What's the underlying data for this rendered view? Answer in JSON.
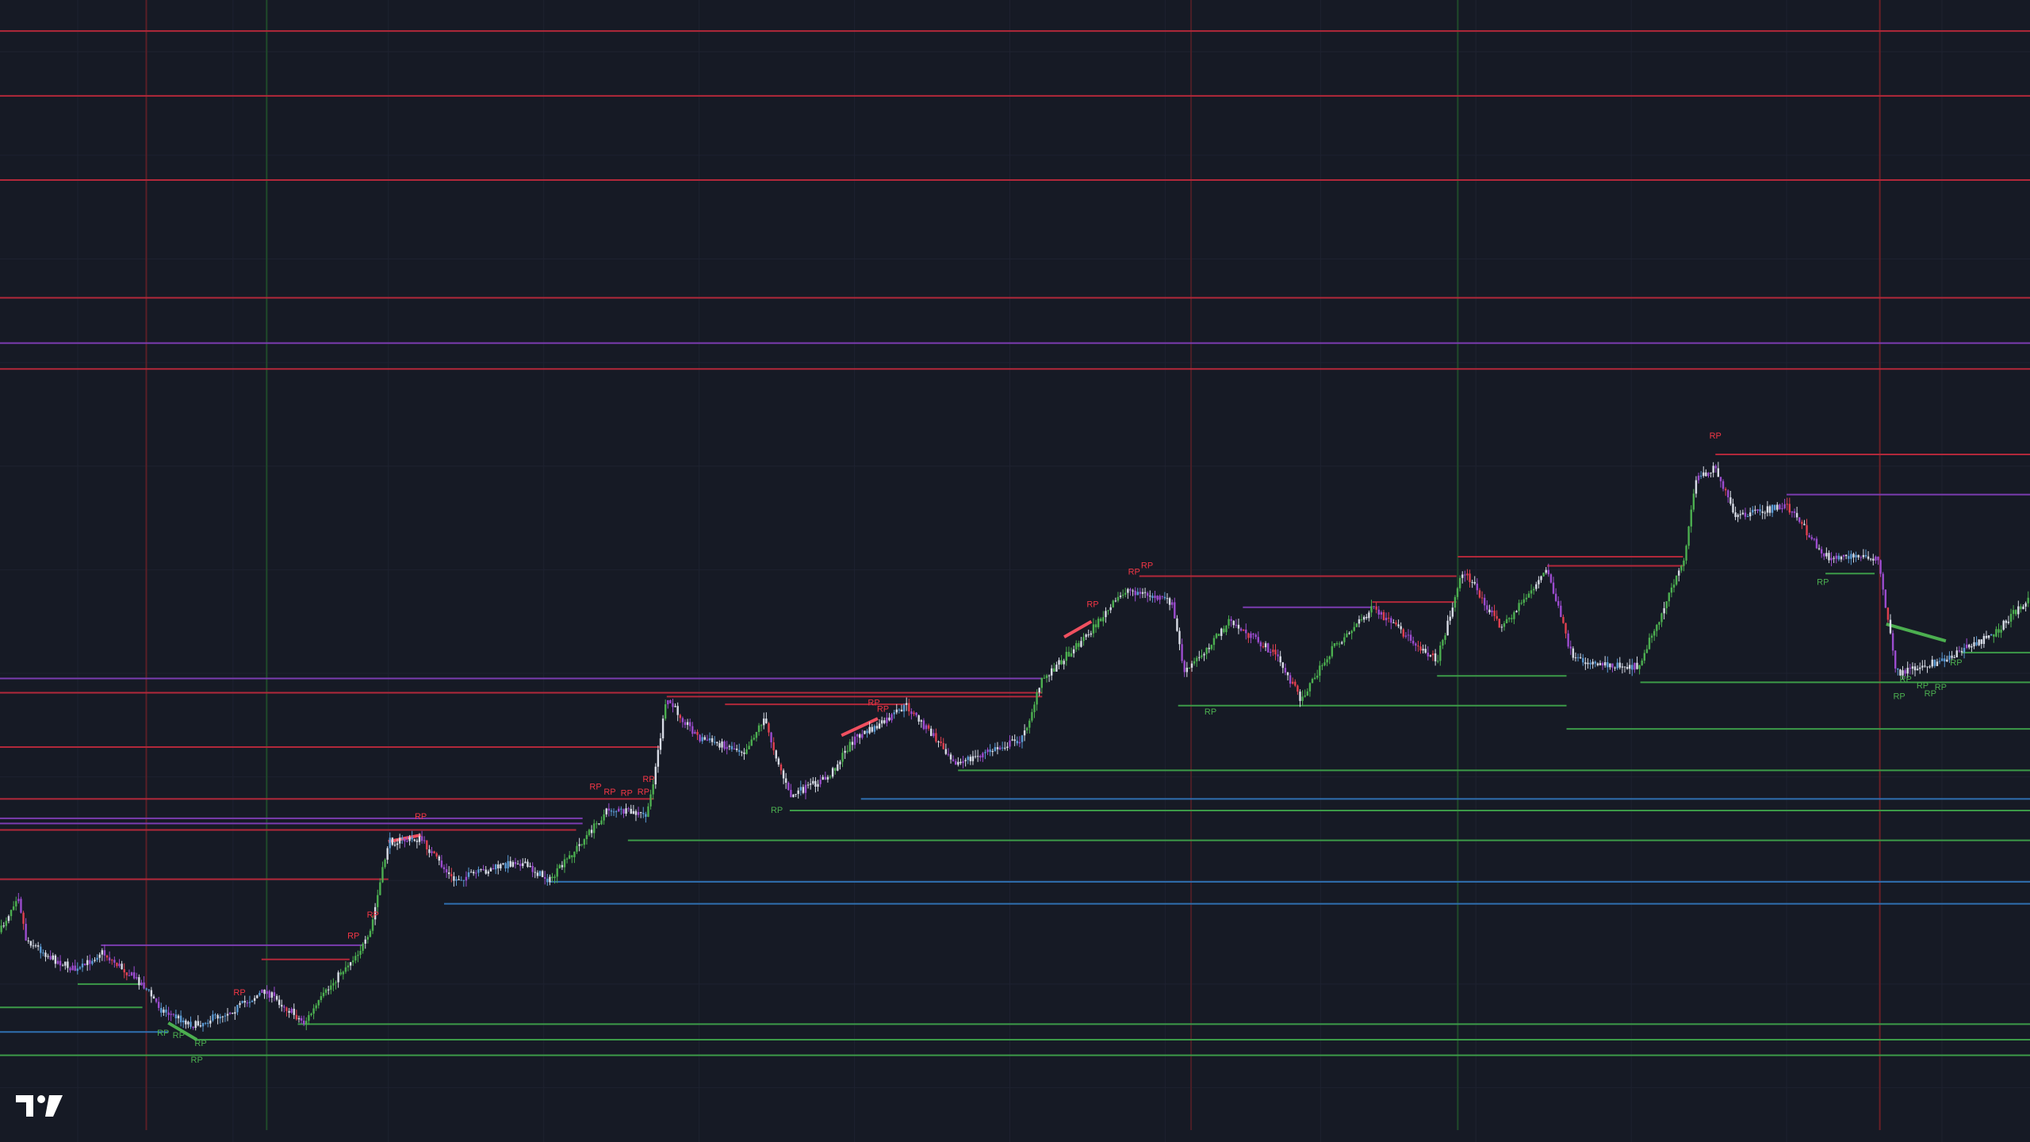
{
  "annotations": {
    "rp_labels": [
      {
        "text": "RP",
        "color": "#f23645"
      },
      {
        "text": "RP",
        "color": "#f23645"
      },
      {
        "text": "RP",
        "color": "#f23645"
      },
      {
        "text": "RP",
        "color": "#f23645"
      },
      {
        "text": "RP",
        "color": "#f23645"
      },
      {
        "text": "RP",
        "color": "#f23645"
      },
      {
        "text": "RP",
        "color": "#f23645"
      },
      {
        "text": "RP",
        "color": "#f23645"
      },
      {
        "text": "RP",
        "color": "#f23645"
      },
      {
        "text": "RP",
        "color": "#f23645"
      },
      {
        "text": "RP",
        "color": "#f23645"
      },
      {
        "text": "RP",
        "color": "#f23645"
      },
      {
        "text": "RP",
        "color": "#f23645"
      },
      {
        "text": "RP",
        "color": "#f23645"
      },
      {
        "text": "RP",
        "color": "#f23645"
      },
      {
        "text": "RP",
        "color": "#4caf50"
      },
      {
        "text": "RP",
        "color": "#4caf50"
      },
      {
        "text": "RP",
        "color": "#4caf50"
      },
      {
        "text": "RP",
        "color": "#4caf50"
      },
      {
        "text": "RP",
        "color": "#4caf50"
      },
      {
        "text": "RP",
        "color": "#4caf50"
      },
      {
        "text": "RP",
        "color": "#4caf50"
      },
      {
        "text": "RP",
        "color": "#4caf50"
      },
      {
        "text": "RP",
        "color": "#4caf50"
      },
      {
        "text": "RP",
        "color": "#4caf50"
      },
      {
        "text": "RP",
        "color": "#4caf50"
      },
      {
        "text": "RP",
        "color": "#4caf50"
      },
      {
        "text": "RP",
        "color": "#4caf50"
      }
    ]
  }
}
